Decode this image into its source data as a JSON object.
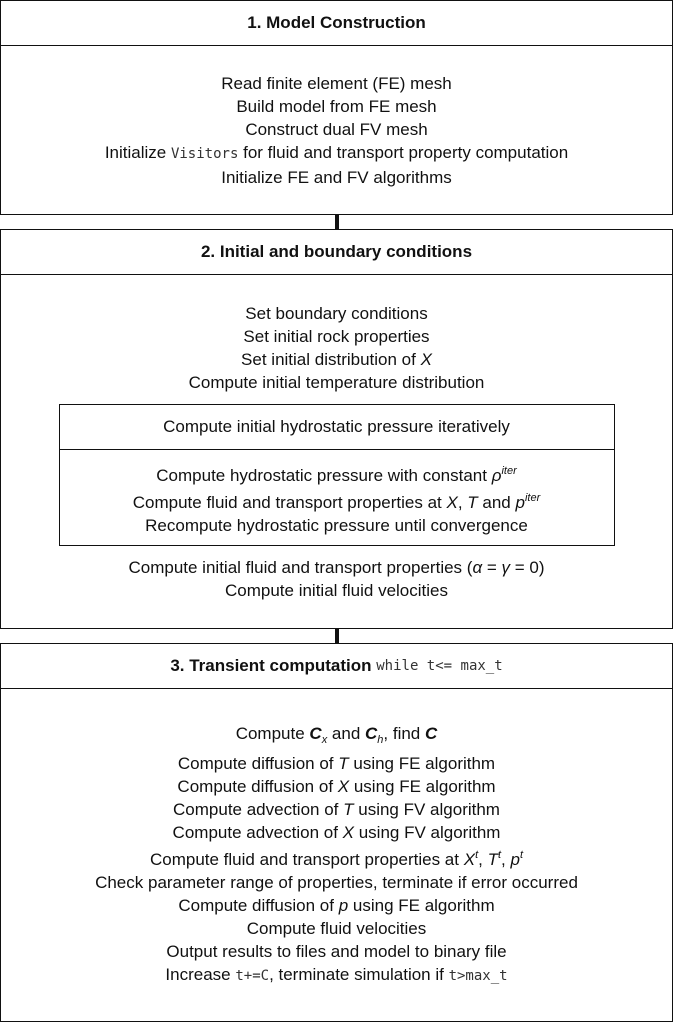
{
  "sections": [
    {
      "title": "1. Model Construction",
      "lines": [
        [
          "Read finite element (FE) mesh"
        ],
        [
          "Build model from FE mesh"
        ],
        [
          "Construct dual FV mesh"
        ],
        [
          "Initialize ",
          {
            "text": "Visitors",
            "style": "mono"
          },
          " for fluid and transport property computation"
        ],
        [
          "Initialize FE and FV algorithms"
        ]
      ]
    },
    {
      "title": "2. Initial and boundary conditions",
      "lines": [
        [
          "Set boundary conditions"
        ],
        [
          "Set initial rock properties"
        ],
        [
          "Set initial distribution of ",
          {
            "text": "X",
            "style": "italic"
          }
        ],
        [
          "Compute initial temperature distribution"
        ]
      ],
      "inner": {
        "title": "Compute initial hydrostatic pressure iteratively",
        "lines": [
          [
            "Compute hydrostatic pressure with constant ",
            {
              "text": "ρ",
              "style": "italic"
            },
            {
              "text": "iter",
              "style": "italic sup"
            }
          ],
          [
            "Compute fluid and transport properties at ",
            {
              "text": "X",
              "style": "italic"
            },
            ", ",
            {
              "text": "T",
              "style": "italic"
            },
            " and ",
            {
              "text": "p",
              "style": "italic"
            },
            {
              "text": "iter",
              "style": "italic sup"
            }
          ],
          [
            "Recompute hydrostatic pressure until convergence"
          ]
        ]
      },
      "lines_after": [
        [
          "Compute initial fluid and transport properties (",
          {
            "text": "α",
            "style": "italic"
          },
          " = ",
          {
            "text": "γ",
            "style": "italic"
          },
          " = 0)"
        ],
        [
          "Compute initial fluid velocities"
        ]
      ]
    },
    {
      "title": [
        {
          "text": "3. Transient computation ",
          "style": "bold"
        },
        {
          "text": "while t<= max_t",
          "style": "mono"
        }
      ],
      "lines": [
        [
          "Compute ",
          {
            "text": "C",
            "style": "bold italic"
          },
          {
            "text": "x",
            "style": "italic sub"
          },
          " and ",
          {
            "text": "C",
            "style": "bold italic"
          },
          {
            "text": "h",
            "style": "italic sub"
          },
          ", find ",
          {
            "text": "C",
            "style": "bold italic"
          }
        ],
        [
          "Compute diffusion of ",
          {
            "text": "T",
            "style": "italic"
          },
          " using FE algorithm"
        ],
        [
          "Compute diffusion of ",
          {
            "text": "X",
            "style": "italic"
          },
          " using FE algorithm"
        ],
        [
          "Compute advection of ",
          {
            "text": "T",
            "style": "italic"
          },
          " using FV algorithm"
        ],
        [
          "Compute advection of ",
          {
            "text": "X",
            "style": "italic"
          },
          " using FV algorithm"
        ],
        [
          "Compute fluid and transport properties at ",
          {
            "text": "X",
            "style": "italic"
          },
          {
            "text": "t",
            "style": "italic sup"
          },
          ", ",
          {
            "text": "T",
            "style": "italic"
          },
          {
            "text": "t",
            "style": "italic sup"
          },
          ", ",
          {
            "text": "p",
            "style": "italic"
          },
          {
            "text": "t",
            "style": "italic sup"
          }
        ],
        [
          "Check parameter range of properties, terminate if error occurred"
        ],
        [
          "Compute diffusion of ",
          {
            "text": "p",
            "style": "italic"
          },
          " using FE algorithm"
        ],
        [
          "Compute fluid velocities"
        ],
        [
          "Output results to files and model to binary file"
        ],
        [
          "Increase ",
          {
            "text": "t+=C",
            "style": "mono"
          },
          ", terminate simulation if ",
          {
            "text": "t>max_t",
            "style": "mono"
          }
        ]
      ]
    }
  ]
}
